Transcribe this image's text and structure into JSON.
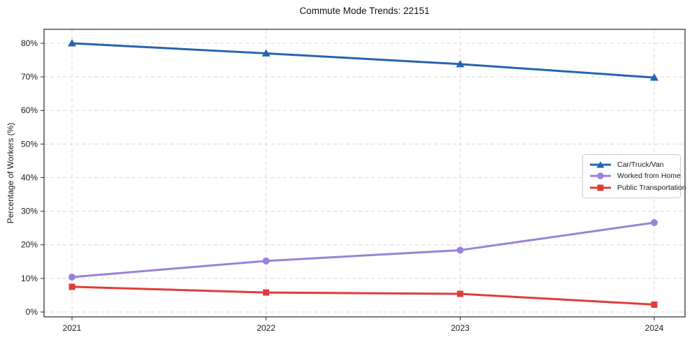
{
  "chart_data": {
    "type": "line",
    "title": "Commute Mode Trends: 22151",
    "xlabel": "",
    "ylabel": "Percentage of Workers (%)",
    "categories": [
      "2021",
      "2022",
      "2023",
      "2024"
    ],
    "x": [
      2021,
      2022,
      2023,
      2024
    ],
    "series": [
      {
        "name": "Car/Truck/Van",
        "values": [
          80.0,
          77.0,
          73.8,
          69.8
        ],
        "color": "#2564b0",
        "marker": "triangle"
      },
      {
        "name": "Worked from Home",
        "values": [
          10.4,
          15.2,
          18.4,
          26.6
        ],
        "color": "#9b82d8",
        "marker": "circle"
      },
      {
        "name": "Public Transportation",
        "values": [
          7.5,
          5.8,
          5.4,
          2.2
        ],
        "color": "#e03c3c",
        "marker": "square"
      }
    ],
    "y_tick_labels": [
      "0%",
      "10%",
      "20%",
      "30%",
      "40%",
      "50%",
      "60%",
      "70%",
      "80%"
    ],
    "y_tick_values": [
      0,
      10,
      20,
      30,
      40,
      50,
      60,
      70,
      80
    ],
    "ylim": [
      -1.45,
      84.16
    ],
    "grid": true,
    "grid_style": "dashed",
    "grid_color": "#d8d8d8",
    "axis_color": "#262626",
    "text_color": "#1a1a1a",
    "legend_position": "center-right",
    "legend_border_color": "#cccccc"
  }
}
